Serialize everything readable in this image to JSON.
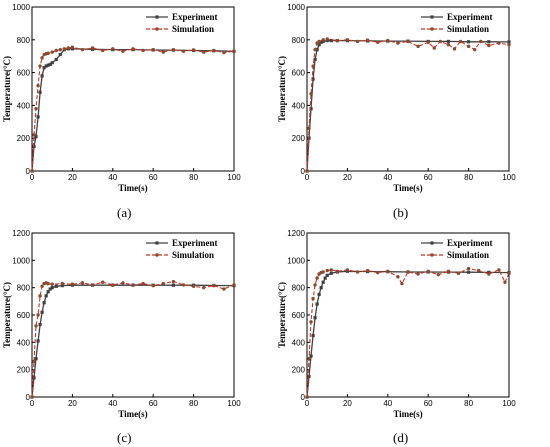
{
  "colors": {
    "experiment": "#404040",
    "simulation": "#cc3322",
    "simulation_marker": "#8b4a2f"
  },
  "chart_data": [
    {
      "type": "line",
      "caption": "(a)",
      "xlabel": "Time(s)",
      "ylabel": "Temperature(°C)",
      "xlim": [
        0,
        100
      ],
      "ylim": [
        0,
        1000
      ],
      "xticks": [
        0,
        20,
        40,
        60,
        80,
        100
      ],
      "yticks": [
        0,
        200,
        400,
        600,
        800,
        1000
      ],
      "legend_position": "top-right",
      "series": [
        {
          "name": "Experiment",
          "style": "solid-square",
          "x": [
            0,
            1,
            2,
            3,
            4,
            5,
            6,
            7,
            8,
            9,
            10,
            12,
            14,
            16,
            18,
            20,
            30,
            40,
            50,
            60,
            70,
            80,
            90,
            100
          ],
          "y": [
            0,
            150,
            210,
            330,
            480,
            580,
            630,
            640,
            645,
            650,
            660,
            680,
            710,
            740,
            745,
            745,
            742,
            740,
            740,
            738,
            737,
            735,
            733,
            730
          ]
        },
        {
          "name": "Simulation",
          "style": "dashed-circle",
          "x": [
            0,
            1,
            2,
            3,
            4,
            5,
            6,
            7,
            8,
            10,
            12,
            14,
            16,
            18,
            20,
            25,
            30,
            35,
            40,
            45,
            50,
            55,
            60,
            65,
            70,
            75,
            80,
            85,
            90,
            95,
            100
          ],
          "y": [
            0,
            220,
            380,
            520,
            640,
            690,
            710,
            715,
            718,
            725,
            735,
            740,
            745,
            750,
            755,
            740,
            750,
            735,
            745,
            730,
            745,
            735,
            740,
            725,
            740,
            730,
            738,
            725,
            735,
            722,
            730
          ]
        }
      ]
    },
    {
      "type": "line",
      "caption": "(b)",
      "xlabel": "Time(s)",
      "ylabel": "Temperature(°C)",
      "xlim": [
        0,
        100
      ],
      "ylim": [
        0,
        1000
      ],
      "xticks": [
        0,
        20,
        40,
        60,
        80,
        100
      ],
      "yticks": [
        0,
        200,
        400,
        600,
        800,
        1000
      ],
      "legend_position": "top-right",
      "series": [
        {
          "name": "Experiment",
          "style": "solid-square",
          "x": [
            0,
            1,
            2,
            3,
            4,
            5,
            6,
            7,
            8,
            10,
            12,
            15,
            20,
            30,
            40,
            50,
            60,
            70,
            80,
            90,
            100
          ],
          "y": [
            0,
            200,
            380,
            560,
            680,
            740,
            770,
            785,
            790,
            795,
            795,
            795,
            795,
            793,
            792,
            792,
            790,
            790,
            788,
            788,
            787
          ]
        },
        {
          "name": "Simulation",
          "style": "dashed-circle",
          "x": [
            0,
            1,
            2,
            3,
            4,
            5,
            6,
            8,
            10,
            15,
            20,
            25,
            30,
            35,
            40,
            45,
            50,
            55,
            60,
            63,
            66,
            70,
            73,
            76,
            80,
            83,
            86,
            90,
            95,
            100
          ],
          "y": [
            0,
            260,
            470,
            640,
            740,
            780,
            790,
            800,
            805,
            795,
            800,
            790,
            798,
            785,
            795,
            780,
            790,
            760,
            785,
            750,
            790,
            770,
            745,
            790,
            760,
            740,
            790,
            765,
            780,
            770
          ]
        }
      ]
    },
    {
      "type": "line",
      "caption": "(c)",
      "xlabel": "Time(s)",
      "ylabel": "Temperature(°C)",
      "xlim": [
        0,
        100
      ],
      "ylim": [
        0,
        1200
      ],
      "xticks": [
        0,
        20,
        40,
        60,
        80,
        100
      ],
      "yticks": [
        0,
        200,
        400,
        600,
        800,
        1000,
        1200
      ],
      "legend_position": "top-right",
      "series": [
        {
          "name": "Experiment",
          "style": "solid-square",
          "x": [
            0,
            1,
            2,
            3,
            4,
            5,
            6,
            7,
            8,
            9,
            10,
            12,
            15,
            20,
            30,
            40,
            50,
            60,
            70,
            80,
            90,
            100
          ],
          "y": [
            0,
            140,
            280,
            410,
            530,
            620,
            690,
            740,
            770,
            790,
            800,
            810,
            815,
            818,
            818,
            818,
            818,
            818,
            818,
            818,
            816,
            815
          ]
        },
        {
          "name": "Simulation",
          "style": "dashed-circle",
          "x": [
            0,
            1,
            2,
            3,
            4,
            5,
            6,
            7,
            8,
            10,
            15,
            20,
            25,
            30,
            35,
            40,
            45,
            50,
            55,
            60,
            65,
            70,
            75,
            80,
            85,
            90,
            95,
            100
          ],
          "y": [
            0,
            260,
            520,
            600,
            740,
            810,
            830,
            835,
            830,
            825,
            830,
            825,
            835,
            820,
            840,
            820,
            835,
            820,
            830,
            815,
            830,
            845,
            820,
            810,
            800,
            815,
            790,
            820
          ]
        }
      ]
    },
    {
      "type": "line",
      "caption": "(d)",
      "xlabel": "Time(s)",
      "ylabel": "Temperature(°C)",
      "xlim": [
        0,
        100
      ],
      "ylim": [
        0,
        1200
      ],
      "xticks": [
        0,
        20,
        40,
        60,
        80,
        100
      ],
      "yticks": [
        0,
        200,
        400,
        600,
        800,
        1000,
        1200
      ],
      "legend_position": "top-right",
      "series": [
        {
          "name": "Experiment",
          "style": "solid-square",
          "x": [
            0,
            1,
            2,
            3,
            4,
            5,
            6,
            7,
            8,
            9,
            10,
            12,
            15,
            20,
            30,
            40,
            50,
            60,
            70,
            80,
            90,
            100
          ],
          "y": [
            0,
            150,
            300,
            450,
            580,
            680,
            750,
            800,
            840,
            870,
            890,
            905,
            915,
            920,
            918,
            917,
            915,
            915,
            914,
            913,
            912,
            910
          ]
        },
        {
          "name": "Simulation",
          "style": "dashed-circle",
          "x": [
            0,
            1,
            2,
            3,
            4,
            5,
            6,
            7,
            8,
            10,
            12,
            15,
            20,
            25,
            30,
            35,
            40,
            45,
            47,
            50,
            55,
            60,
            65,
            70,
            75,
            80,
            85,
            90,
            95,
            98,
            100
          ],
          "y": [
            0,
            280,
            550,
            720,
            820,
            870,
            900,
            910,
            915,
            925,
            930,
            920,
            930,
            915,
            925,
            910,
            920,
            880,
            830,
            915,
            900,
            920,
            895,
            920,
            905,
            940,
            925,
            900,
            930,
            840,
            905
          ]
        }
      ]
    }
  ]
}
